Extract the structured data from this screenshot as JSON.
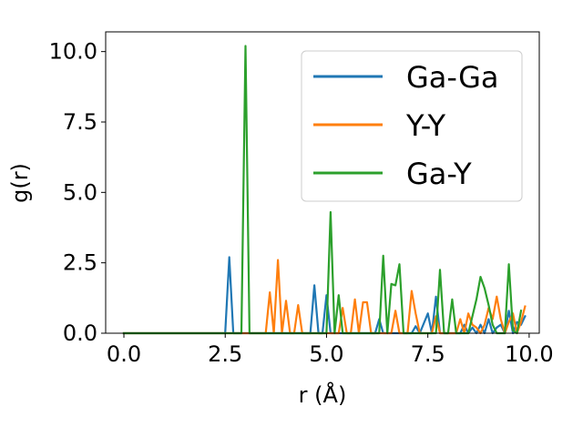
{
  "chart_data": {
    "type": "line",
    "xlabel": "r (Å)",
    "ylabel": "g(r)",
    "xlim": [
      -0.45,
      10.25
    ],
    "ylim": [
      0,
      10.7
    ],
    "xticks": [
      "0.0",
      "2.5",
      "5.0",
      "7.5",
      "10.0"
    ],
    "yticks": [
      "0.0",
      "2.5",
      "5.0",
      "7.5",
      "10.0"
    ],
    "grid": false,
    "legend_position": "top-right",
    "series": [
      {
        "name": "Ga-Ga",
        "color": "#1f77b4",
        "points": [
          [
            0,
            0
          ],
          [
            2.4,
            0
          ],
          [
            2.5,
            0
          ],
          [
            2.6,
            2.7
          ],
          [
            2.7,
            0
          ],
          [
            4.5,
            0
          ],
          [
            4.6,
            0
          ],
          [
            4.7,
            1.7
          ],
          [
            4.8,
            0
          ],
          [
            4.9,
            0
          ],
          [
            5.0,
            1.35
          ],
          [
            5.1,
            0
          ],
          [
            6.2,
            0
          ],
          [
            6.3,
            0.5
          ],
          [
            6.4,
            0
          ],
          [
            6.7,
            0
          ],
          [
            7.1,
            0
          ],
          [
            7.2,
            0.25
          ],
          [
            7.3,
            0
          ],
          [
            7.5,
            0.7
          ],
          [
            7.6,
            0
          ],
          [
            7.7,
            1.3
          ],
          [
            7.8,
            0
          ],
          [
            8.3,
            0
          ],
          [
            8.4,
            0.3
          ],
          [
            8.5,
            0
          ],
          [
            8.6,
            0.2
          ],
          [
            8.7,
            0
          ],
          [
            8.8,
            0.3
          ],
          [
            8.9,
            0
          ],
          [
            9.0,
            0.5
          ],
          [
            9.1,
            0
          ],
          [
            9.2,
            0.2
          ],
          [
            9.3,
            0.3
          ],
          [
            9.4,
            0
          ],
          [
            9.5,
            0.8
          ],
          [
            9.6,
            0
          ],
          [
            9.7,
            0.4
          ],
          [
            9.8,
            0.3
          ],
          [
            9.9,
            0.6
          ]
        ]
      },
      {
        "name": "Y-Y",
        "color": "#ff7f0e",
        "points": [
          [
            0,
            0
          ],
          [
            3.4,
            0
          ],
          [
            3.5,
            0
          ],
          [
            3.6,
            1.45
          ],
          [
            3.7,
            0
          ],
          [
            3.8,
            2.6
          ],
          [
            3.9,
            0
          ],
          [
            4.0,
            1.15
          ],
          [
            4.1,
            0
          ],
          [
            4.2,
            0
          ],
          [
            4.3,
            1.0
          ],
          [
            4.4,
            0
          ],
          [
            5.2,
            0
          ],
          [
            5.3,
            0
          ],
          [
            5.4,
            0.9
          ],
          [
            5.5,
            0
          ],
          [
            5.6,
            0
          ],
          [
            5.7,
            1.2
          ],
          [
            5.8,
            0
          ],
          [
            5.9,
            1.1
          ],
          [
            6.0,
            1.1
          ],
          [
            6.1,
            0
          ],
          [
            6.4,
            0
          ],
          [
            6.6,
            0
          ],
          [
            6.7,
            0.8
          ],
          [
            6.8,
            0
          ],
          [
            7.0,
            0
          ],
          [
            7.1,
            1.5
          ],
          [
            7.2,
            0.7
          ],
          [
            7.3,
            0
          ],
          [
            7.6,
            0
          ],
          [
            7.7,
            0.6
          ],
          [
            7.8,
            0
          ],
          [
            8.2,
            0
          ],
          [
            8.3,
            0.5
          ],
          [
            8.4,
            0
          ],
          [
            8.5,
            0.7
          ],
          [
            8.6,
            0.3
          ],
          [
            8.7,
            0.2
          ],
          [
            8.8,
            0
          ],
          [
            8.9,
            0.3
          ],
          [
            9.0,
            0.9
          ],
          [
            9.1,
            0.5
          ],
          [
            9.2,
            1.3
          ],
          [
            9.3,
            0.5
          ],
          [
            9.4,
            0
          ],
          [
            9.5,
            0.4
          ],
          [
            9.6,
            0.7
          ],
          [
            9.7,
            0
          ],
          [
            9.8,
            0.4
          ],
          [
            9.9,
            0.95
          ]
        ]
      },
      {
        "name": "Ga-Y",
        "color": "#2ca02c",
        "points": [
          [
            0,
            0
          ],
          [
            2.8,
            0
          ],
          [
            2.9,
            0
          ],
          [
            3.0,
            10.2
          ],
          [
            3.1,
            0
          ],
          [
            4.9,
            0
          ],
          [
            5.0,
            0
          ],
          [
            5.1,
            4.3
          ],
          [
            5.2,
            0
          ],
          [
            5.3,
            1.35
          ],
          [
            5.4,
            0
          ],
          [
            6.3,
            0
          ],
          [
            6.4,
            2.75
          ],
          [
            6.5,
            0
          ],
          [
            6.6,
            1.75
          ],
          [
            6.7,
            1.7
          ],
          [
            6.8,
            2.45
          ],
          [
            6.9,
            0
          ],
          [
            7.7,
            0
          ],
          [
            7.8,
            2.25
          ],
          [
            7.9,
            0
          ],
          [
            8.0,
            0
          ],
          [
            8.1,
            1.2
          ],
          [
            8.2,
            0
          ],
          [
            8.5,
            0
          ],
          [
            8.6,
            0.6
          ],
          [
            8.7,
            1.2
          ],
          [
            8.8,
            2.0
          ],
          [
            8.9,
            1.6
          ],
          [
            9.0,
            1.0
          ],
          [
            9.1,
            0.3
          ],
          [
            9.2,
            0
          ],
          [
            9.4,
            0
          ],
          [
            9.5,
            2.45
          ],
          [
            9.6,
            0.1
          ],
          [
            9.7,
            0
          ],
          [
            9.8,
            0.8
          ]
        ]
      }
    ]
  }
}
